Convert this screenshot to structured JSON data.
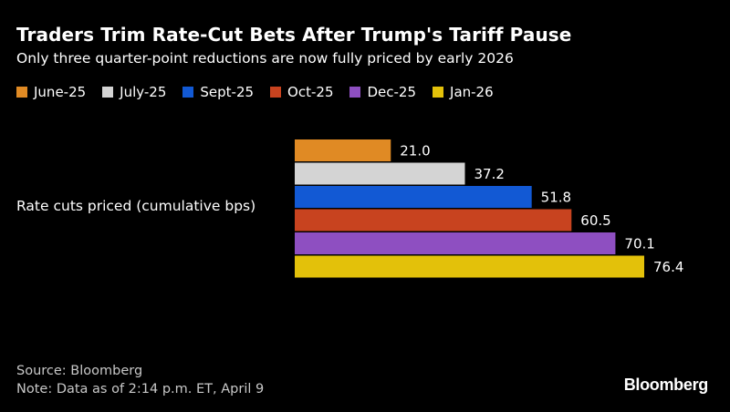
{
  "title": "Traders Trim Rate-Cut Bets After Trump's Tariff Pause",
  "subtitle": "Only three quarter-point reductions are now fully priced by early 2026",
  "footer": {
    "source": "Source: Bloomberg",
    "note": "Note: Data as of 2:14 p.m. ET, April 9"
  },
  "brand": "Bloomberg",
  "chart_data": {
    "type": "bar",
    "orientation": "horizontal",
    "categories": [
      "Rate cuts priced (cumulative bps)"
    ],
    "series": [
      {
        "name": "June-25",
        "values": [
          21.0
        ],
        "label": "21.0",
        "color": "#e08a24"
      },
      {
        "name": "July-25",
        "values": [
          37.2
        ],
        "label": "37.2",
        "color": "#d4d4d4"
      },
      {
        "name": "Sept-25",
        "values": [
          51.8
        ],
        "label": "51.8",
        "color": "#1259d4"
      },
      {
        "name": "Oct-25",
        "values": [
          60.5
        ],
        "label": "60.5",
        "color": "#c8431f"
      },
      {
        "name": "Dec-25",
        "values": [
          70.1
        ],
        "label": "70.1",
        "color": "#8e4fc1"
      },
      {
        "name": "Jan-26",
        "values": [
          76.4
        ],
        "label": "76.4",
        "color": "#e3c10a"
      }
    ],
    "xlim": [
      0,
      76.4
    ],
    "grid": false,
    "legend_position": "top-left",
    "data_labels": true
  }
}
